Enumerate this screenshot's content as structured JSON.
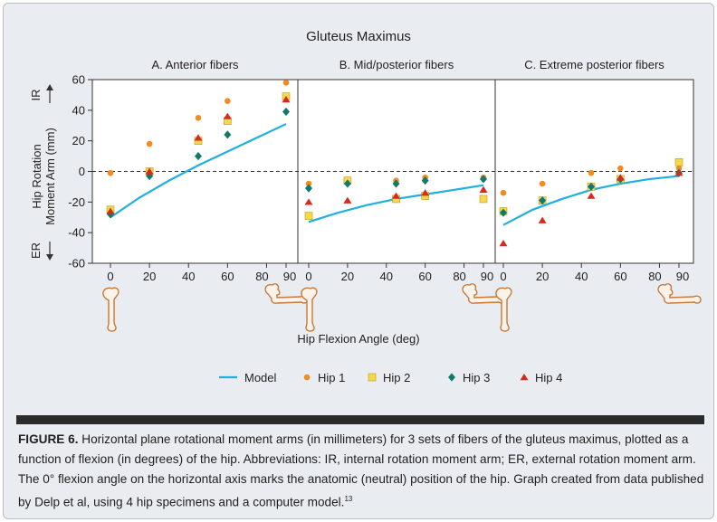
{
  "figure": {
    "title": "Gluteus Maximus",
    "xlabel": "Hip Flexion Angle (deg)",
    "ylabel_line1": "Hip Rotation",
    "ylabel_line2": "Moment Arm (mm)",
    "y_top_marker": "IR",
    "y_bottom_marker": "ER",
    "legend": [
      {
        "key": "model",
        "label": "Model",
        "color": "#1fb0e0",
        "marker": "line"
      },
      {
        "key": "hip1",
        "label": "Hip 1",
        "color": "#f28c1e",
        "marker": "circle"
      },
      {
        "key": "hip2",
        "label": "Hip 2",
        "color": "#f7d84b",
        "marker": "square"
      },
      {
        "key": "hip3",
        "label": "Hip 3",
        "color": "#127a6a",
        "marker": "diamond"
      },
      {
        "key": "hip4",
        "label": "Hip 4",
        "color": "#d42b1e",
        "marker": "triangle"
      }
    ]
  },
  "caption": {
    "label": "FIGURE 6.",
    "text": " Horizontal plane rotational moment arms (in millimeters) for 3 sets of fibers of the gluteus maximus, plotted as a function of flexion (in degrees) of the hip. Abbreviations: IR, internal rotation moment arm; ER, external rotation moment arm. The 0° flexion angle on the horizontal axis marks the anatomic (neutral) position of the hip. Graph created from data published by Delp et al, using 4 hip specimens and a computer model.",
    "ref": "13"
  },
  "chart_data": [
    {
      "type": "scatter",
      "title": "A. Anterior fibers",
      "xlim": [
        0,
        90
      ],
      "ylim": [
        -60,
        60
      ],
      "xticks": [
        0,
        20,
        40,
        60,
        80,
        90
      ],
      "yticks": [
        -60,
        -40,
        -20,
        0,
        20,
        40,
        60
      ],
      "model": {
        "x": [
          0,
          15,
          30,
          45,
          60,
          75,
          90
        ],
        "y": [
          -30,
          -17,
          -6,
          4,
          13,
          22,
          31
        ]
      },
      "series": [
        {
          "name": "Hip 1",
          "x": [
            0,
            20,
            45,
            60,
            90
          ],
          "y": [
            -1,
            18,
            35,
            46,
            58
          ]
        },
        {
          "name": "Hip 2",
          "x": [
            0,
            20,
            45,
            60,
            90
          ],
          "y": [
            -25,
            0,
            20,
            33,
            49
          ]
        },
        {
          "name": "Hip 3",
          "x": [
            0,
            20,
            45,
            60,
            90
          ],
          "y": [
            -28,
            -3,
            10,
            24,
            39
          ]
        },
        {
          "name": "Hip 4",
          "x": [
            0,
            20,
            45,
            60,
            90
          ],
          "y": [
            -26,
            0,
            22,
            36,
            47
          ]
        }
      ]
    },
    {
      "type": "scatter",
      "title": "B. Mid/posterior fibers",
      "xlim": [
        0,
        90
      ],
      "ylim": [
        -60,
        60
      ],
      "xticks": [
        0,
        20,
        40,
        60,
        80,
        90
      ],
      "model": {
        "x": [
          0,
          15,
          30,
          45,
          60,
          75,
          90
        ],
        "y": [
          -33,
          -27,
          -22,
          -18,
          -15,
          -12,
          -9
        ]
      },
      "series": [
        {
          "name": "Hip 1",
          "x": [
            0,
            20,
            45,
            60,
            90
          ],
          "y": [
            -8,
            -6,
            -6,
            -4,
            -4
          ]
        },
        {
          "name": "Hip 2",
          "x": [
            0,
            20,
            45,
            60,
            90
          ],
          "y": [
            -29,
            -6,
            -18,
            -16,
            -18
          ]
        },
        {
          "name": "Hip 3",
          "x": [
            0,
            20,
            45,
            60,
            90
          ],
          "y": [
            -11,
            -8,
            -8,
            -6,
            -5
          ]
        },
        {
          "name": "Hip 4",
          "x": [
            0,
            20,
            45,
            60,
            90
          ],
          "y": [
            -20,
            -19,
            -16,
            -14,
            -12
          ]
        }
      ]
    },
    {
      "type": "scatter",
      "title": "C. Extreme posterior fibers",
      "xlim": [
        0,
        90
      ],
      "ylim": [
        -60,
        60
      ],
      "xticks": [
        0,
        20,
        40,
        60,
        80,
        90
      ],
      "model": {
        "x": [
          0,
          15,
          30,
          45,
          60,
          75,
          90
        ],
        "y": [
          -35,
          -25,
          -18,
          -12,
          -8,
          -5,
          -3
        ]
      },
      "series": [
        {
          "name": "Hip 1",
          "x": [
            0,
            20,
            45,
            60,
            90
          ],
          "y": [
            -14,
            -8,
            -1,
            2,
            2
          ]
        },
        {
          "name": "Hip 2",
          "x": [
            0,
            20,
            45,
            60,
            90
          ],
          "y": [
            -26,
            -19,
            -10,
            -5,
            6
          ]
        },
        {
          "name": "Hip 3",
          "x": [
            0,
            20,
            45,
            60,
            90
          ],
          "y": [
            -27,
            -19,
            -10,
            -5,
            -1
          ]
        },
        {
          "name": "Hip 4",
          "x": [
            0,
            20,
            45,
            60,
            90
          ],
          "y": [
            -47,
            -32,
            -16,
            -4,
            -1
          ]
        }
      ]
    }
  ]
}
